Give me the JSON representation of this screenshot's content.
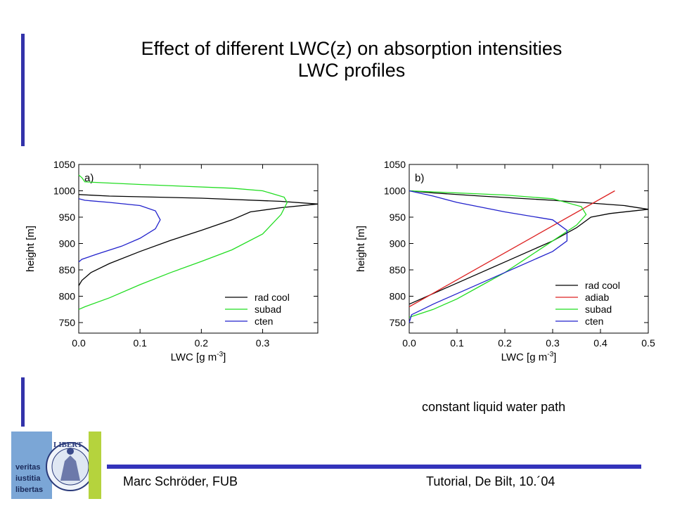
{
  "colors": {
    "accent": "#3333aa",
    "footer_line": "#3333bb",
    "logo_blue": "#7ba6d6",
    "logo_green": "#b5d33d",
    "rad_cool": "#000000",
    "adiab": "#dd2222",
    "subad": "#22dd22",
    "cten": "#2222cc"
  },
  "slide": {
    "title_line1": "Effect of different LWC(z) on absorption intensities",
    "title_line2": "LWC profiles",
    "note": "constant liquid water path",
    "footer_left": "Marc Schröder, FUB",
    "footer_right": "Tutorial, De Bilt, 10.´04",
    "logo": {
      "motto": [
        "veritas",
        "iustitia",
        "libertas"
      ],
      "seal_text": "LIBERT",
      "icon": "university-seal-icon"
    }
  },
  "chart_data": [
    {
      "type": "line",
      "panel_label": "a)",
      "xlabel": "LWC [g m",
      "xlabel_sup": "-3",
      "xlabel_end": "]",
      "ylabel": "height [m]",
      "xlim": [
        0.0,
        0.39
      ],
      "ylim": [
        730,
        1050
      ],
      "xticks": [
        "0.0",
        "0.1",
        "0.2",
        "0.3"
      ],
      "yticks": [
        "750",
        "800",
        "850",
        "900",
        "950",
        "1000",
        "1050"
      ],
      "legend_position": "bottom-right",
      "series": [
        {
          "name": "rad cool",
          "color_key": "rad_cool",
          "points": [
            [
              0.0,
              820
            ],
            [
              0.005,
              830
            ],
            [
              0.02,
              845
            ],
            [
              0.05,
              862
            ],
            [
              0.1,
              885
            ],
            [
              0.15,
              906
            ],
            [
              0.2,
              925
            ],
            [
              0.25,
              945
            ],
            [
              0.28,
              960
            ],
            [
              0.33,
              968
            ],
            [
              0.39,
              975
            ],
            [
              0.33,
              980
            ],
            [
              0.2,
              986
            ],
            [
              0.05,
              990
            ],
            [
              0.0,
              993
            ]
          ]
        },
        {
          "name": "subad",
          "color_key": "subad",
          "points": [
            [
              0.0,
              775
            ],
            [
              0.01,
              780
            ],
            [
              0.05,
              797
            ],
            [
              0.1,
              822
            ],
            [
              0.15,
              845
            ],
            [
              0.2,
              866
            ],
            [
              0.25,
              888
            ],
            [
              0.3,
              918
            ],
            [
              0.33,
              955
            ],
            [
              0.34,
              978
            ],
            [
              0.335,
              988
            ],
            [
              0.3,
              1000
            ],
            [
              0.25,
              1005
            ],
            [
              0.1,
              1012
            ],
            [
              0.01,
              1017
            ],
            [
              0.005,
              1025
            ],
            [
              0.0,
              1030
            ]
          ]
        },
        {
          "name": "cten",
          "color_key": "cten",
          "points": [
            [
              0.0,
              865
            ],
            [
              0.005,
              870
            ],
            [
              0.03,
              880
            ],
            [
              0.07,
              895
            ],
            [
              0.1,
              910
            ],
            [
              0.125,
              928
            ],
            [
              0.133,
              945
            ],
            [
              0.125,
              962
            ],
            [
              0.1,
              972
            ],
            [
              0.05,
              978
            ],
            [
              0.01,
              982
            ],
            [
              0.0,
              985
            ]
          ]
        }
      ]
    },
    {
      "type": "line",
      "panel_label": "b)",
      "xlabel": "LWC [g m",
      "xlabel_sup": "-3",
      "xlabel_end": "]",
      "ylabel": "height [m]",
      "xlim": [
        0.0,
        0.5
      ],
      "ylim": [
        730,
        1050
      ],
      "xticks": [
        "0.0",
        "0.1",
        "0.2",
        "0.3",
        "0.4",
        "0.5"
      ],
      "yticks": [
        "750",
        "800",
        "850",
        "900",
        "950",
        "1000",
        "1050"
      ],
      "legend_position": "bottom-right",
      "series": [
        {
          "name": "rad cool",
          "color_key": "rad_cool",
          "points": [
            [
              0.0,
              785
            ],
            [
              0.05,
              805
            ],
            [
              0.1,
              825
            ],
            [
              0.15,
              845
            ],
            [
              0.2,
              865
            ],
            [
              0.25,
              885
            ],
            [
              0.3,
              905
            ],
            [
              0.35,
              930
            ],
            [
              0.38,
              950
            ],
            [
              0.42,
              957
            ],
            [
              0.5,
              965
            ],
            [
              0.45,
              972
            ],
            [
              0.3,
              982
            ],
            [
              0.15,
              990
            ],
            [
              0.05,
              996
            ],
            [
              0.0,
              1000
            ]
          ]
        },
        {
          "name": "adiab",
          "color_key": "adiab",
          "points": [
            [
              0.0,
              780
            ],
            [
              0.43,
              1000
            ]
          ]
        },
        {
          "name": "subad",
          "color_key": "subad",
          "points": [
            [
              0.0,
              760
            ],
            [
              0.05,
              775
            ],
            [
              0.1,
              795
            ],
            [
              0.15,
              820
            ],
            [
              0.2,
              845
            ],
            [
              0.25,
              875
            ],
            [
              0.3,
              905
            ],
            [
              0.35,
              935
            ],
            [
              0.37,
              955
            ],
            [
              0.36,
              970
            ],
            [
              0.3,
              985
            ],
            [
              0.2,
              992
            ],
            [
              0.1,
              996
            ],
            [
              0.0,
              1000
            ]
          ]
        },
        {
          "name": "cten",
          "color_key": "cten",
          "points": [
            [
              0.0,
              750
            ],
            [
              0.005,
              765
            ],
            [
              0.05,
              785
            ],
            [
              0.1,
              805
            ],
            [
              0.15,
              825
            ],
            [
              0.2,
              845
            ],
            [
              0.25,
              865
            ],
            [
              0.3,
              885
            ],
            [
              0.33,
              905
            ],
            [
              0.33,
              925
            ],
            [
              0.3,
              945
            ],
            [
              0.2,
              960
            ],
            [
              0.1,
              978
            ],
            [
              0.05,
              990
            ],
            [
              0.0,
              1000
            ]
          ]
        }
      ]
    }
  ]
}
